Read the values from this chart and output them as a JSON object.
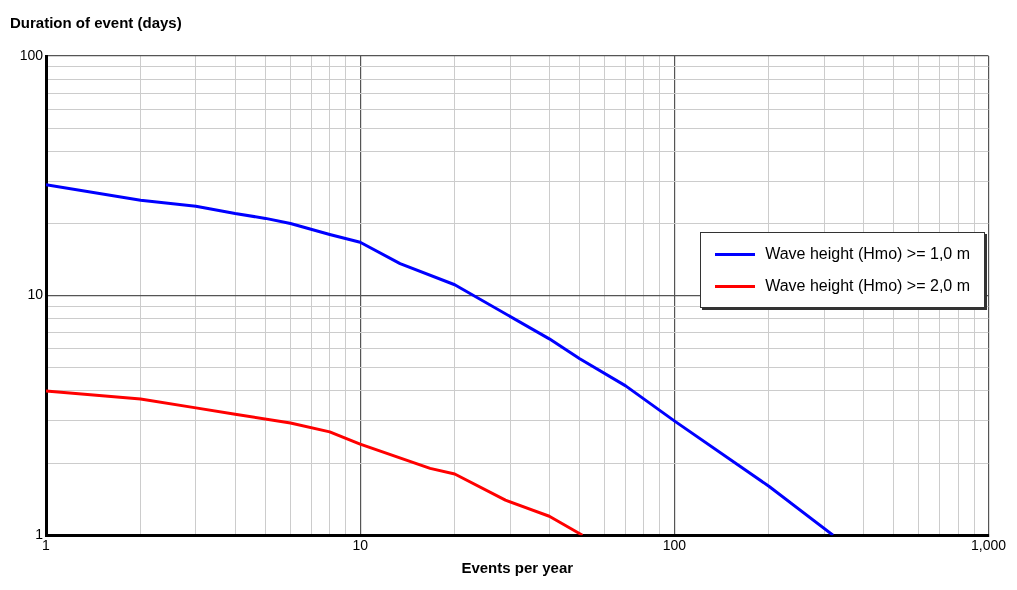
{
  "chart_data": {
    "type": "line",
    "xlabel": "Events per year",
    "ylabel": "Duration of event (days)",
    "log": "xy",
    "grid": true,
    "legend": "right",
    "marker": "none",
    "line_style": "solid",
    "xlim": [
      1,
      1000
    ],
    "ylim": [
      1,
      100
    ],
    "xticks": [
      1,
      {
        "value": 2,
        "label": null
      },
      {
        "value": 3,
        "label": null
      },
      {
        "value": 4,
        "label": null
      },
      {
        "value": 5,
        "label": null
      },
      {
        "value": 6,
        "label": null
      },
      {
        "value": 7,
        "label": null
      },
      {
        "value": 8,
        "label": null
      },
      {
        "value": 9,
        "label": null
      },
      10,
      {
        "value": 20,
        "label": null
      },
      {
        "value": 30,
        "label": null
      },
      {
        "value": 40,
        "label": null
      },
      {
        "value": 50,
        "label": null
      },
      {
        "value": 60,
        "label": null
      },
      {
        "value": 70,
        "label": null
      },
      {
        "value": 80,
        "label": null
      },
      {
        "value": 90,
        "label": null
      },
      100,
      {
        "value": 200,
        "label": null
      },
      {
        "value": 300,
        "label": null
      },
      {
        "value": 400,
        "label": null
      },
      {
        "value": 500,
        "label": null
      },
      {
        "value": 600,
        "label": null
      },
      {
        "value": 700,
        "label": null
      },
      {
        "value": 800,
        "label": null
      },
      {
        "value": 900,
        "label": null
      },
      {
        "value": 1000,
        "label": "1,000"
      }
    ],
    "yticks": [
      1,
      {
        "value": 2,
        "label": null
      },
      {
        "value": 3,
        "label": null
      },
      {
        "value": 4,
        "label": null
      },
      {
        "value": 5,
        "label": null
      },
      {
        "value": 6,
        "label": null
      },
      {
        "value": 7,
        "label": null
      },
      {
        "value": 8,
        "label": null
      },
      {
        "value": 9,
        "label": null
      },
      10,
      {
        "value": 20,
        "label": null
      },
      {
        "value": 30,
        "label": null
      },
      {
        "value": 40,
        "label": null
      },
      {
        "value": 50,
        "label": null
      },
      {
        "value": 60,
        "label": null
      },
      {
        "value": 70,
        "label": null
      },
      {
        "value": 80,
        "label": null
      },
      {
        "value": 90,
        "label": null
      },
      100
    ],
    "series": [
      {
        "name": "Wave height (Hmo) >= 1,0 m",
        "color": "#0000ff",
        "x": [
          1,
          2,
          3,
          4,
          5,
          6,
          8,
          10,
          13.4,
          20,
          40,
          50,
          70,
          100,
          200,
          320
        ],
        "values": [
          29,
          25,
          23.6,
          22,
          21,
          20,
          18,
          16.7,
          13.6,
          11.1,
          6.6,
          5.45,
          4.2,
          3.0,
          1.6,
          1
        ]
      },
      {
        "name": "Wave height (Hmo) >= 2,0 m",
        "color": "#ff0000",
        "x": [
          1,
          2,
          3,
          4,
          6,
          8,
          10,
          16.7,
          20,
          29,
          40,
          51
        ],
        "values": [
          4.0,
          3.7,
          3.4,
          3.2,
          2.94,
          2.7,
          2.4,
          1.9,
          1.8,
          1.4,
          1.2,
          1
        ]
      }
    ]
  }
}
